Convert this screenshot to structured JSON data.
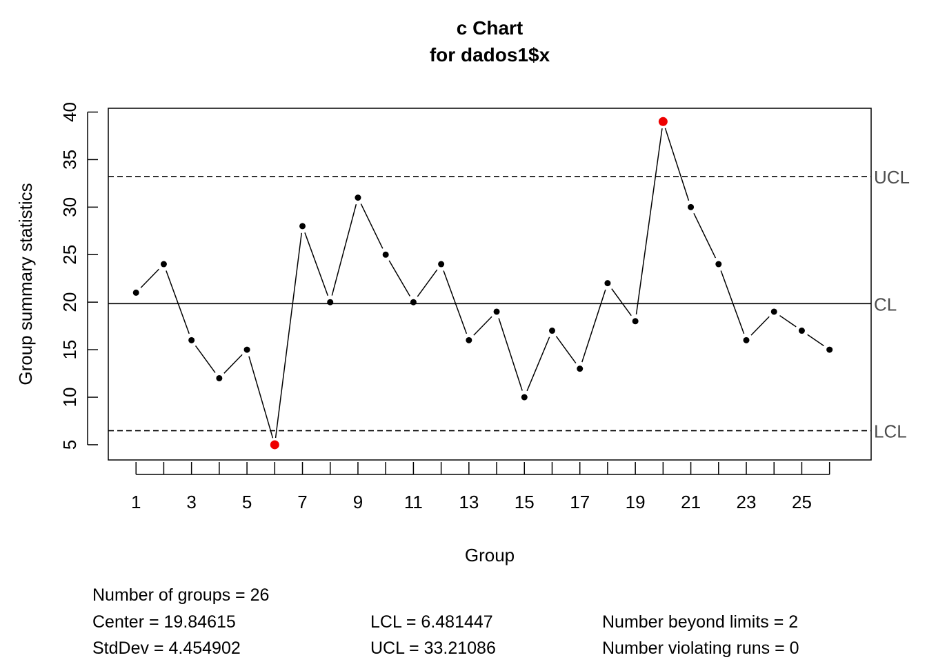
{
  "chart_data": {
    "type": "line",
    "title": "c Chart",
    "subtitle": "for dados1$x",
    "xlabel": "Group",
    "ylabel": "Group summary statistics",
    "x": [
      1,
      2,
      3,
      4,
      5,
      6,
      7,
      8,
      9,
      10,
      11,
      12,
      13,
      14,
      15,
      16,
      17,
      18,
      19,
      20,
      21,
      22,
      23,
      24,
      25,
      26
    ],
    "values": [
      21,
      24,
      16,
      12,
      15,
      5,
      28,
      20,
      31,
      25,
      20,
      24,
      16,
      19,
      10,
      17,
      13,
      22,
      18,
      39,
      30,
      24,
      16,
      19,
      17,
      15
    ],
    "out_of_control_groups": [
      6,
      20
    ],
    "xlim": [
      0,
      27.5
    ],
    "ylim": [
      3.4,
      40.4
    ],
    "x_ticks": [
      1,
      2,
      3,
      4,
      5,
      6,
      7,
      8,
      9,
      10,
      11,
      12,
      13,
      14,
      15,
      16,
      17,
      18,
      19,
      20,
      21,
      22,
      23,
      24,
      25,
      26
    ],
    "x_tick_labels": [
      "1",
      "3",
      "5",
      "7",
      "9",
      "11",
      "13",
      "15",
      "17",
      "19",
      "21",
      "23",
      "25"
    ],
    "y_ticks": [
      "5",
      "10",
      "15",
      "20",
      "25",
      "30",
      "35",
      "40"
    ],
    "grid": false,
    "limits": {
      "ucl": {
        "label": "UCL",
        "value": 33.21086
      },
      "cl": {
        "label": "CL",
        "value": 19.84615
      },
      "lcl": {
        "label": "LCL",
        "value": 6.481447
      }
    },
    "colors": {
      "point": "#000000",
      "violation": "#ee0000",
      "line": "#000000",
      "limit_label": "#4d4d4d"
    }
  },
  "stats": {
    "groups": "Number of groups = 26",
    "center": "Center = 19.84615",
    "stddev": "StdDev = 4.454902",
    "lcl": "LCL = 6.481447",
    "ucl": "UCL = 33.21086",
    "beyond": "Number beyond limits = 2",
    "runs": "Number violating runs = 0"
  }
}
